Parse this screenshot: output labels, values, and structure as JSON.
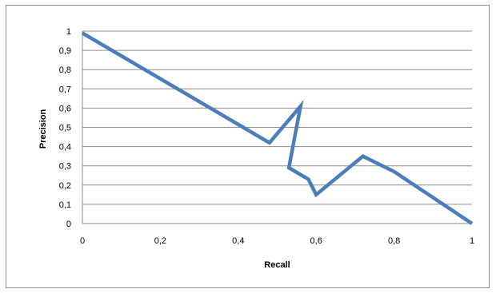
{
  "chart_data": {
    "type": "line",
    "title": "",
    "xlabel": "Recall",
    "ylabel": "Precision",
    "xlim": [
      0,
      1
    ],
    "ylim": [
      0,
      1
    ],
    "x_ticks": [
      "0",
      "0,2",
      "0,4",
      "0,6",
      "0,8",
      "1"
    ],
    "y_ticks": [
      "0",
      "0,1",
      "0,2",
      "0,3",
      "0,4",
      "0,5",
      "0,6",
      "0,7",
      "0,8",
      "0,9",
      "1"
    ],
    "grid": "horizontal",
    "legend": "none",
    "series": [
      {
        "color": "#4a7ebb",
        "x": [
          0,
          0.48,
          0.56,
          0.53,
          0.58,
          0.6,
          0.72,
          0.8,
          1
        ],
        "y": [
          0.99,
          0.42,
          0.61,
          0.29,
          0.23,
          0.15,
          0.35,
          0.27,
          0
        ]
      }
    ]
  }
}
